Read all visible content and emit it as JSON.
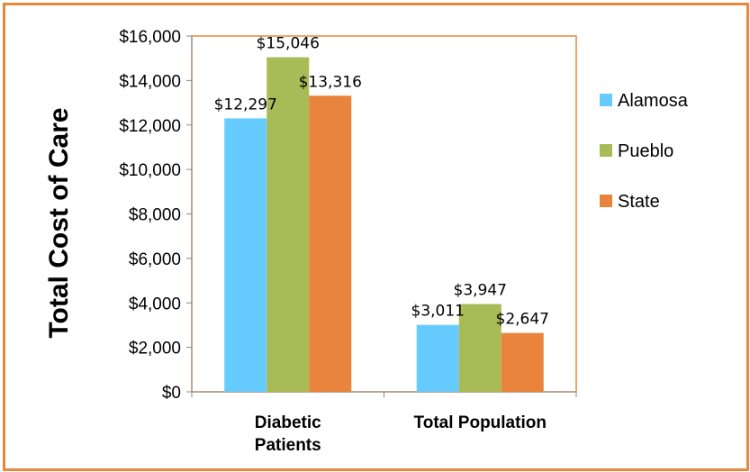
{
  "chart_data": {
    "type": "bar",
    "title": "",
    "xlabel": "",
    "ylabel": "Total Cost of Care",
    "categories": [
      [
        "Diabetic",
        "Patients"
      ],
      [
        "Total Population"
      ]
    ],
    "series": [
      {
        "name": "Alamosa",
        "values": [
          12297,
          3011
        ],
        "labels": [
          "$12,297",
          "$3,011"
        ],
        "color": "#66ccff"
      },
      {
        "name": "Pueblo",
        "values": [
          15046,
          3947
        ],
        "labels": [
          "$15,046",
          "$3,947"
        ],
        "color": "#a8bb56"
      },
      {
        "name": "State",
        "values": [
          13316,
          2647
        ],
        "labels": [
          "$13,316",
          "$2,647"
        ],
        "color": "#e8843c"
      }
    ],
    "ylim": [
      0,
      16000
    ],
    "yticks": [
      0,
      2000,
      4000,
      6000,
      8000,
      10000,
      12000,
      14000,
      16000
    ],
    "ytick_labels": [
      "$0",
      "$2,000",
      "$4,000",
      "$6,000",
      "$8,000",
      "$10,000",
      "$12,000",
      "$14,000",
      "$16,000"
    ],
    "grid": false,
    "legend_position": "right",
    "plot_border_color": "#e8873a"
  }
}
